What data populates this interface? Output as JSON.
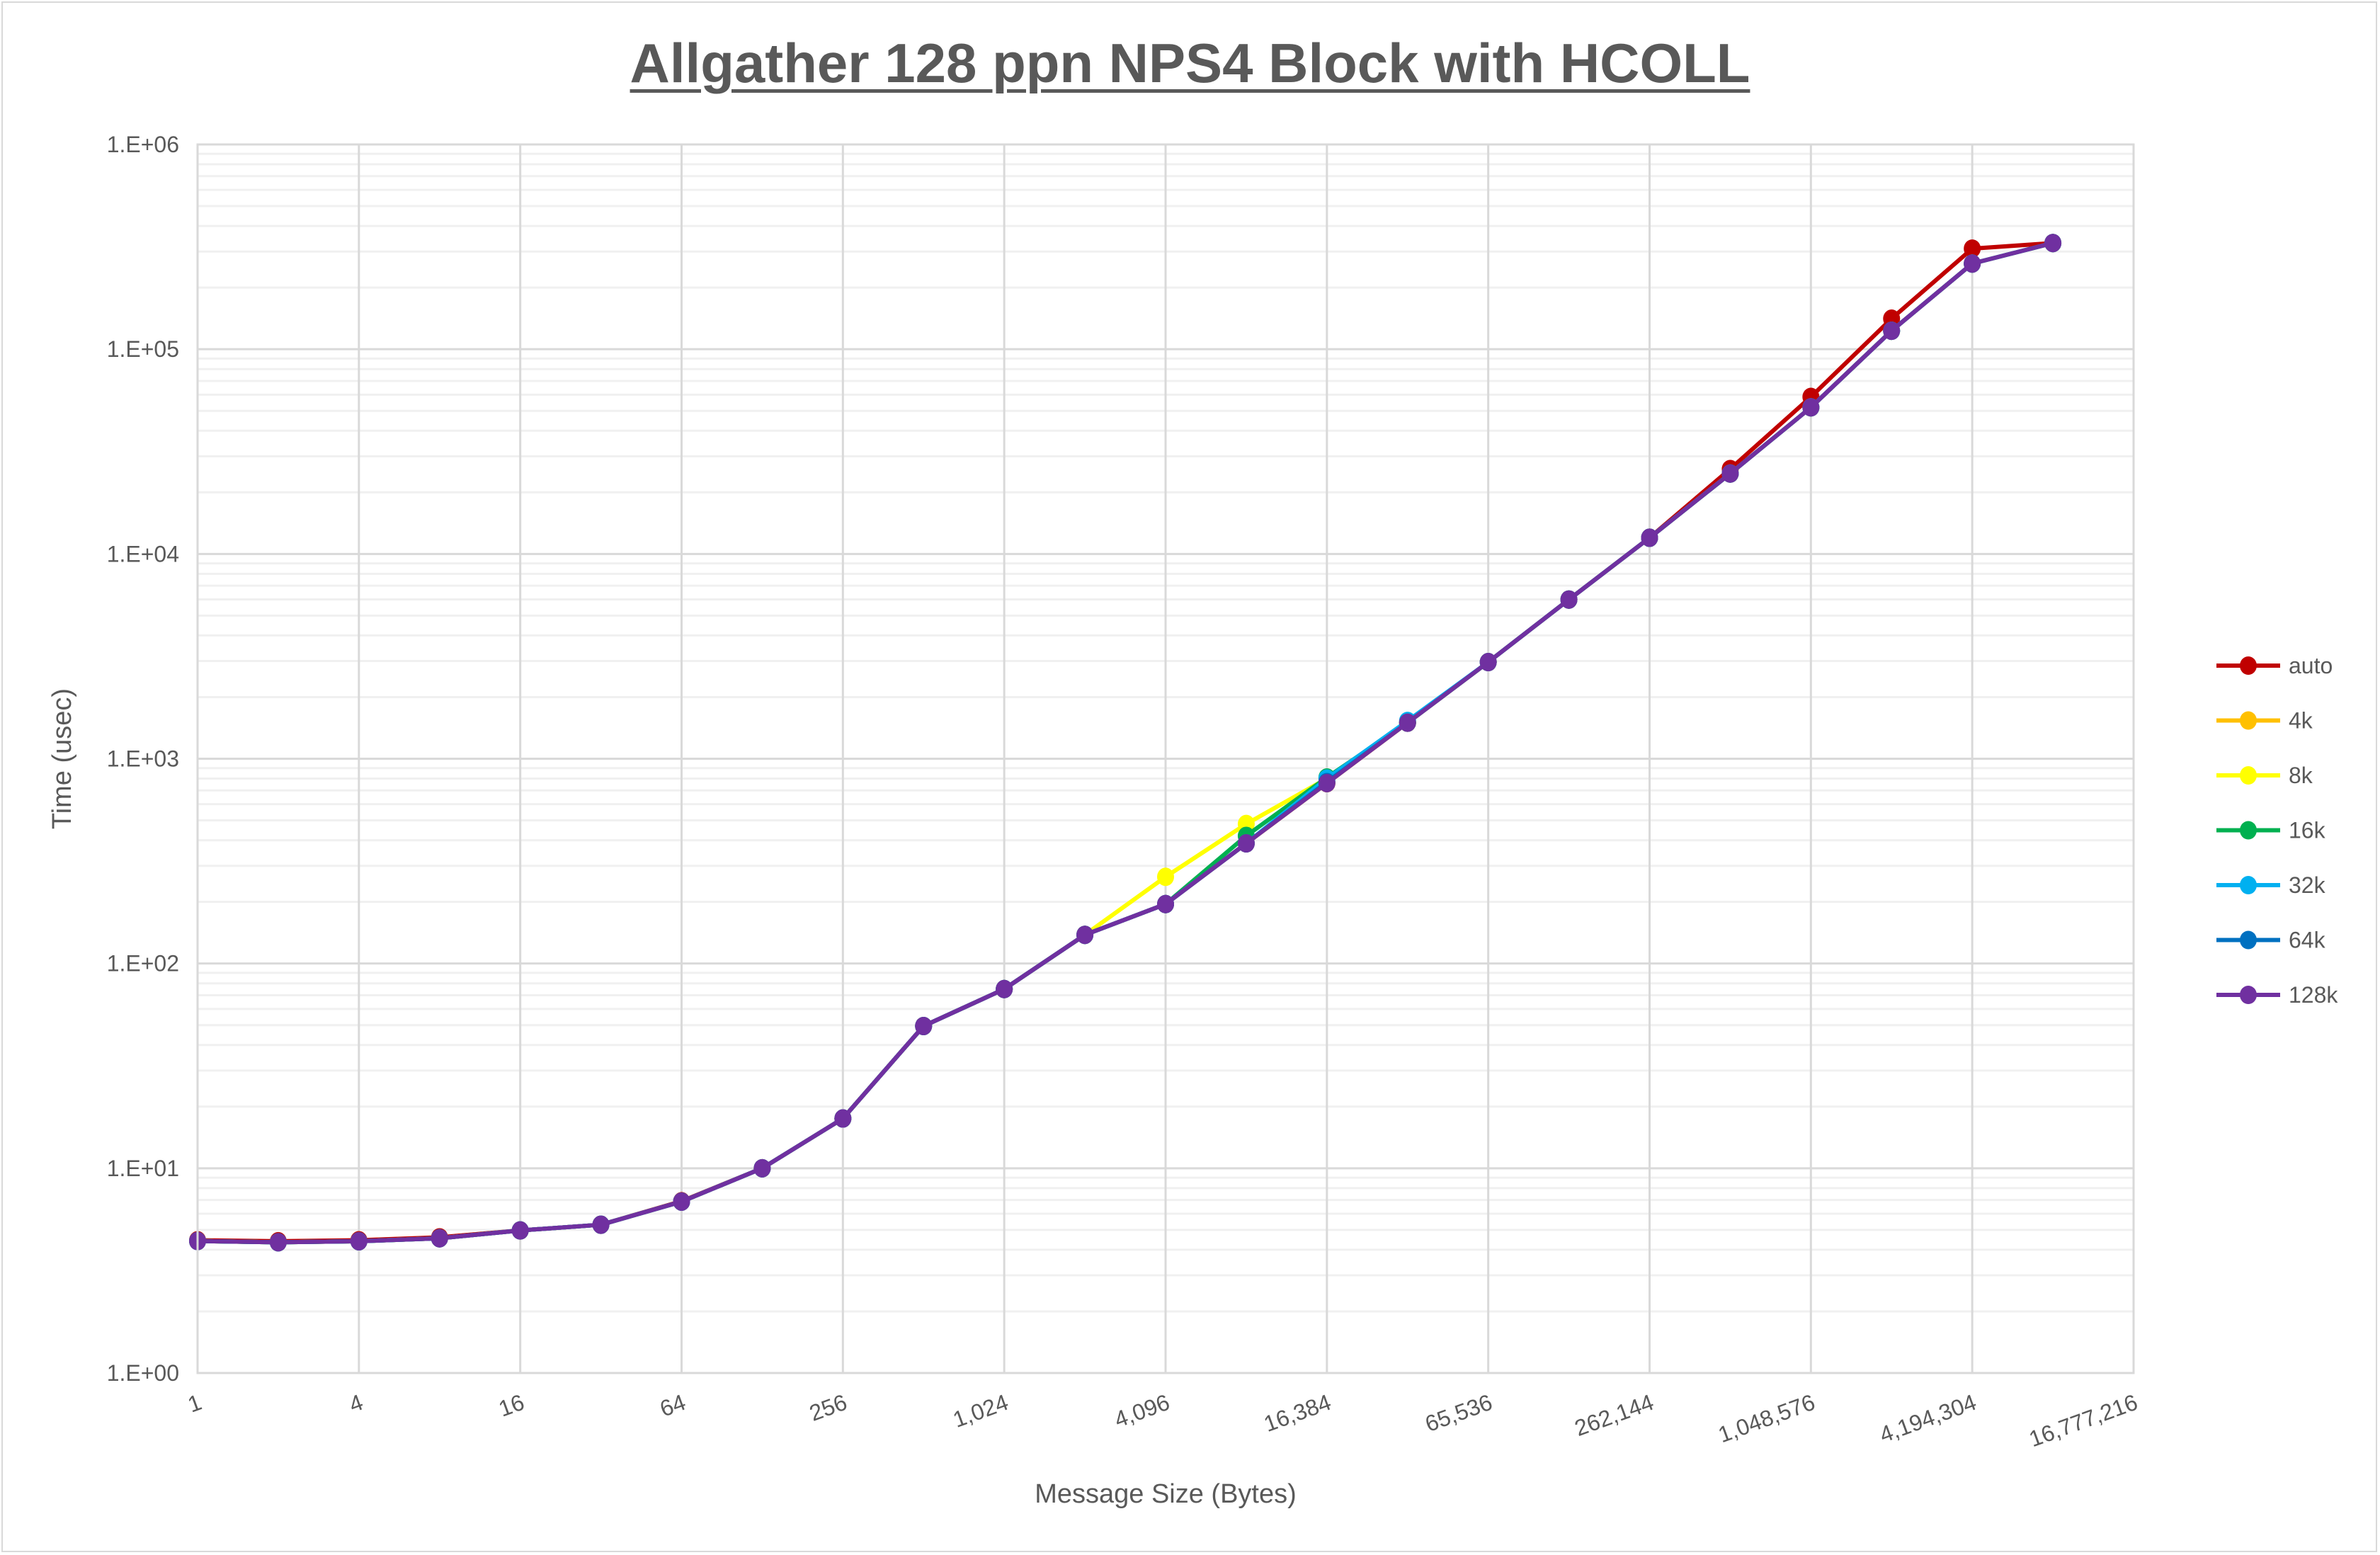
{
  "chart_data": {
    "type": "line",
    "title": "Allgather 128 ppn NPS4 Block with HCOLL",
    "xlabel": "Message Size (Bytes)",
    "ylabel": "Time (usec)",
    "x_scale": "log2",
    "y_scale": "log10",
    "xlim": [
      1,
      16777216
    ],
    "ylim": [
      1,
      1000000
    ],
    "x_tick_labels": [
      "1",
      "4",
      "16",
      "64",
      "256",
      "1,024",
      "4,096",
      "16,384",
      "65,536",
      "262,144",
      "1,048,576",
      "4,194,304",
      "16,777,216"
    ],
    "y_tick_labels": [
      "1.E+00",
      "1.E+01",
      "1.E+02",
      "1.E+03",
      "1.E+04",
      "1.E+05",
      "1.E+06"
    ],
    "grid": "major and minor",
    "legend_position": "right",
    "x": [
      1,
      2,
      4,
      8,
      16,
      32,
      64,
      128,
      256,
      512,
      1024,
      2048,
      4096,
      8192,
      16384,
      32768,
      65536,
      131072,
      262144,
      524288,
      1048576,
      2097152,
      4194304,
      8388608
    ],
    "series": [
      {
        "name": "auto",
        "color": "#C00000",
        "values": [
          4.45,
          4.4,
          4.45,
          4.6,
          4.97,
          5.3,
          6.9,
          10.0,
          17.5,
          49.5,
          75,
          138,
          195,
          386,
          760,
          1500,
          2965,
          5990,
          12000,
          26000,
          58500,
          141000,
          310000,
          330000
        ]
      },
      {
        "name": "4k",
        "color": "#FFC000",
        "values": [
          4.41,
          4.35,
          4.4,
          4.55,
          4.97,
          5.3,
          6.87,
          10.0,
          17.5,
          49.5,
          75,
          138,
          195,
          386,
          760,
          1500,
          2965,
          5990,
          12000,
          24700,
          52000,
          123000,
          262000,
          330000
        ]
      },
      {
        "name": "8k",
        "color": "#FFFF00",
        "values": [
          4.41,
          4.35,
          4.4,
          4.55,
          4.97,
          5.3,
          6.87,
          10.0,
          17.5,
          49.5,
          75,
          138,
          265,
          480,
          800,
          1500,
          2965,
          5990,
          12000,
          24700,
          52000,
          123000,
          262000,
          330000
        ]
      },
      {
        "name": "16k",
        "color": "#00B050",
        "values": [
          4.41,
          4.35,
          4.4,
          4.55,
          4.97,
          5.3,
          6.87,
          10.0,
          17.5,
          49.5,
          75,
          138,
          195,
          420,
          810,
          1500,
          2965,
          5990,
          12000,
          24700,
          52000,
          123000,
          262000,
          330000
        ]
      },
      {
        "name": "32k",
        "color": "#00B0F0",
        "values": [
          4.41,
          4.35,
          4.4,
          4.55,
          4.97,
          5.3,
          6.87,
          10.0,
          17.5,
          49.5,
          75,
          138,
          195,
          386,
          800,
          1530,
          2965,
          5990,
          12000,
          24700,
          52000,
          123000,
          262000,
          330000
        ]
      },
      {
        "name": "64k",
        "color": "#0070C0",
        "values": [
          4.41,
          4.35,
          4.4,
          4.55,
          4.97,
          5.3,
          6.87,
          10.0,
          17.5,
          49.5,
          75,
          138,
          195,
          386,
          770,
          1500,
          2965,
          5990,
          12000,
          24700,
          52000,
          123000,
          262000,
          330000
        ]
      },
      {
        "name": "128k",
        "color": "#7030A0",
        "values": [
          4.41,
          4.35,
          4.4,
          4.55,
          4.97,
          5.3,
          6.87,
          10.0,
          17.5,
          49.5,
          75,
          138,
          195,
          386,
          760,
          1500,
          2965,
          5990,
          12000,
          24700,
          52000,
          123000,
          262000,
          330000
        ]
      }
    ]
  }
}
